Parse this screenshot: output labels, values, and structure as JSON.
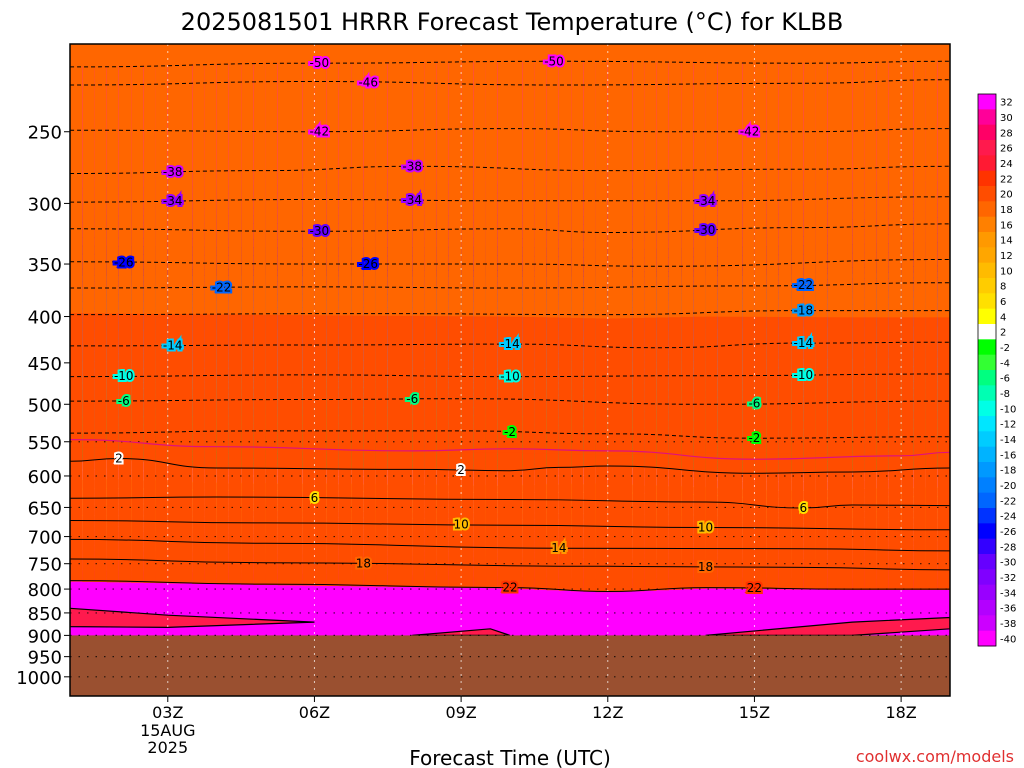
{
  "chart_data": {
    "type": "heatmap",
    "title": "2025081501 HRRR Forecast Temperature (°C) for KLBB",
    "xlabel": "Forecast Time (UTC)",
    "ylabel": "",
    "x_ticks": [
      {
        "hour": 3,
        "label": "03Z"
      },
      {
        "hour": 6,
        "label": "06Z"
      },
      {
        "hour": 9,
        "label": "09Z"
      },
      {
        "hour": 12,
        "label": "12Z"
      },
      {
        "hour": 15,
        "label": "15Z"
      },
      {
        "hour": 18,
        "label": "18Z"
      }
    ],
    "x_date_label": [
      "15AUG",
      "2025"
    ],
    "xlim": [
      1,
      19
    ],
    "y_scale": "log-pressure",
    "ylim": [
      1050,
      200
    ],
    "y_ticks": [
      250,
      300,
      350,
      400,
      450,
      500,
      550,
      600,
      650,
      700,
      750,
      800,
      850,
      900,
      950,
      1000
    ],
    "surface_pressure": 900,
    "ground_color": "#9a5030",
    "colorbar": {
      "levels": [
        32,
        30,
        28,
        26,
        24,
        22,
        20,
        18,
        16,
        14,
        12,
        10,
        8,
        6,
        4,
        2,
        -2,
        -4,
        -6,
        -8,
        -10,
        -12,
        -14,
        -16,
        -18,
        -20,
        -22,
        -24,
        -26,
        -28,
        -30,
        -32,
        -34,
        -36,
        -38,
        -40
      ],
      "colors": [
        "#ff00ff",
        "#ff0099",
        "#ff0066",
        "#ff1a4d",
        "#ff1a33",
        "#ff3300",
        "#ff4d00",
        "#ff6600",
        "#ff8000",
        "#ff9900",
        "#ffa600",
        "#ffbb00",
        "#ffcc00",
        "#ffe000",
        "#ffff00",
        "#ffffff",
        "#00ff00",
        "#33ff33",
        "#00ff80",
        "#00ffb3",
        "#00ffe6",
        "#00e6ff",
        "#00ccff",
        "#00b3ff",
        "#0099ff",
        "#0080ff",
        "#0066ff",
        "#0033ff",
        "#0000ff",
        "#3300ff",
        "#6600ff",
        "#8000ff",
        "#9900ff",
        "#b300ff",
        "#cc00ff",
        "#ff00ff"
      ]
    },
    "contours": [
      {
        "value": -50,
        "points": [
          [
            1,
            212
          ],
          [
            6,
            210
          ],
          [
            11,
            209
          ],
          [
            16,
            210
          ],
          [
            19,
            209
          ]
        ],
        "labels": [
          {
            "t": "-50",
            "x": 6.1
          },
          {
            "t": "-50",
            "x": 10.9
          }
        ]
      },
      {
        "value": -46,
        "points": [
          [
            1,
            222
          ],
          [
            6,
            220
          ],
          [
            11,
            222
          ],
          [
            16,
            221
          ],
          [
            19,
            219
          ]
        ],
        "labels": [
          {
            "t": "-46",
            "x": 7.1
          }
        ]
      },
      {
        "value": -42,
        "points": [
          [
            1,
            249
          ],
          [
            6,
            250
          ],
          [
            10,
            248
          ],
          [
            13,
            250
          ],
          [
            16,
            250
          ],
          [
            19,
            248
          ]
        ],
        "labels": [
          {
            "t": "-42",
            "x": 6.1
          },
          {
            "t": "-42",
            "x": 14.9
          }
        ]
      },
      {
        "value": -38,
        "points": [
          [
            1,
            278
          ],
          [
            5,
            276
          ],
          [
            8,
            273
          ],
          [
            12,
            276
          ],
          [
            16,
            275
          ],
          [
            19,
            273
          ]
        ],
        "labels": [
          {
            "t": "-38",
            "x": 3.1
          },
          {
            "t": "-38",
            "x": 8.0
          }
        ]
      },
      {
        "value": -34,
        "points": [
          [
            1,
            299
          ],
          [
            6,
            297
          ],
          [
            10,
            298
          ],
          [
            14,
            298
          ],
          [
            19,
            295
          ]
        ],
        "labels": [
          {
            "t": "-34",
            "x": 3.1
          },
          {
            "t": "-34",
            "x": 8.0
          },
          {
            "t": "-34",
            "x": 14.0
          }
        ]
      },
      {
        "value": -30,
        "points": [
          [
            1,
            320
          ],
          [
            6,
            322
          ],
          [
            10,
            320
          ],
          [
            12,
            323
          ],
          [
            16,
            319
          ],
          [
            19,
            316
          ]
        ],
        "labels": [
          {
            "t": "-30",
            "x": 6.1
          },
          {
            "t": "-30",
            "x": 14.0
          }
        ]
      },
      {
        "value": -26,
        "points": [
          [
            1,
            348
          ],
          [
            6,
            350
          ],
          [
            10,
            350
          ],
          [
            13,
            352
          ],
          [
            19,
            346
          ]
        ],
        "labels": [
          {
            "t": "-26",
            "x": 2.1
          },
          {
            "t": "-26",
            "x": 7.1
          }
        ]
      },
      {
        "value": -22,
        "points": [
          [
            1,
            372
          ],
          [
            6,
            371
          ],
          [
            10,
            372
          ],
          [
            15,
            370
          ],
          [
            19,
            367
          ]
        ],
        "labels": [
          {
            "t": "-22",
            "x": 4.1
          },
          {
            "t": "-22",
            "x": 16.0
          }
        ]
      },
      {
        "value": -18,
        "points": [
          [
            1,
            398
          ],
          [
            7,
            397
          ],
          [
            12,
            398
          ],
          [
            16,
            394
          ],
          [
            19,
            394
          ]
        ],
        "labels": [
          {
            "t": "-18",
            "x": 16.0
          }
        ]
      },
      {
        "value": -14,
        "points": [
          [
            1,
            431
          ],
          [
            6,
            430
          ],
          [
            10,
            429
          ],
          [
            13,
            433
          ],
          [
            16,
            428
          ],
          [
            19,
            427
          ]
        ],
        "labels": [
          {
            "t": "-14",
            "x": 3.1
          },
          {
            "t": "-14",
            "x": 10.0
          },
          {
            "t": "-14",
            "x": 16.0
          }
        ]
      },
      {
        "value": -10,
        "points": [
          [
            1,
            466
          ],
          [
            6,
            464
          ],
          [
            10,
            466
          ],
          [
            14,
            465
          ],
          [
            19,
            463
          ]
        ],
        "labels": [
          {
            "t": "-10",
            "x": 2.1
          },
          {
            "t": "-10",
            "x": 10.0
          },
          {
            "t": "-10",
            "x": 16.0
          }
        ]
      },
      {
        "value": -6,
        "points": [
          [
            1,
            496
          ],
          [
            6,
            494
          ],
          [
            9,
            493
          ],
          [
            14,
            500
          ],
          [
            19,
            496
          ]
        ],
        "labels": [
          {
            "t": "-6",
            "x": 2.1
          },
          {
            "t": "-6",
            "x": 8.0
          },
          {
            "t": "-6",
            "x": 15.0
          }
        ]
      },
      {
        "value": -2,
        "points": [
          [
            1,
            538
          ],
          [
            5,
            535
          ],
          [
            9,
            535
          ],
          [
            12,
            539
          ],
          [
            15,
            545
          ],
          [
            19,
            543
          ]
        ],
        "labels": [
          {
            "t": "-2",
            "x": 10.0
          },
          {
            "t": "-2",
            "x": 15.0
          }
        ]
      },
      {
        "value": 2,
        "points": [
          [
            1,
            578
          ],
          [
            2,
            574
          ],
          [
            4,
            588
          ],
          [
            8,
            590
          ],
          [
            10,
            592
          ],
          [
            11,
            587
          ],
          [
            12,
            585
          ],
          [
            15,
            596
          ],
          [
            17,
            594
          ],
          [
            19,
            588
          ]
        ],
        "labels": [
          {
            "t": "2",
            "x": 2.0
          },
          {
            "t": "2",
            "x": 9.0
          }
        ]
      },
      {
        "value": 6,
        "points": [
          [
            1,
            635
          ],
          [
            4,
            633
          ],
          [
            10,
            637
          ],
          [
            14,
            641
          ],
          [
            16,
            651
          ],
          [
            17,
            646
          ],
          [
            19,
            647
          ]
        ],
        "labels": [
          {
            "t": "6",
            "x": 6.0
          },
          {
            "t": "6",
            "x": 16.0
          }
        ]
      },
      {
        "value": 10,
        "points": [
          [
            1,
            672
          ],
          [
            5,
            676
          ],
          [
            10,
            680
          ],
          [
            14,
            684
          ],
          [
            19,
            688
          ]
        ],
        "labels": [
          {
            "t": "10",
            "x": 9.0
          },
          {
            "t": "10",
            "x": 14.0
          }
        ]
      },
      {
        "value": 14,
        "points": [
          [
            1,
            705
          ],
          [
            5,
            712
          ],
          [
            11,
            721
          ],
          [
            16,
            722
          ],
          [
            19,
            726
          ]
        ],
        "labels": [
          {
            "t": "14",
            "x": 11.0
          }
        ]
      },
      {
        "value": 18,
        "points": [
          [
            1,
            741
          ],
          [
            5,
            748
          ],
          [
            12,
            755
          ],
          [
            16,
            757
          ],
          [
            19,
            762
          ]
        ],
        "labels": [
          {
            "t": "18",
            "x": 7.0
          },
          {
            "t": "18",
            "x": 14.0
          }
        ]
      },
      {
        "value": 22,
        "points": [
          [
            1,
            783
          ],
          [
            5,
            790
          ],
          [
            10,
            797
          ],
          [
            12,
            805
          ],
          [
            14,
            797
          ],
          [
            17,
            800
          ],
          [
            19,
            800
          ]
        ],
        "labels": [
          {
            "t": "22",
            "x": 10.0
          },
          {
            "t": "22",
            "x": 15.0
          }
        ]
      }
    ],
    "lobes": [
      {
        "value": 26,
        "points": [
          [
            1,
            840
          ],
          [
            3,
            855
          ],
          [
            6,
            870
          ],
          [
            3,
            882
          ],
          [
            1,
            880
          ]
        ]
      },
      {
        "value": 26,
        "points": [
          [
            8,
            900
          ],
          [
            9.6,
            885
          ],
          [
            10,
            900
          ]
        ]
      },
      {
        "value": 26,
        "points": [
          [
            14,
            900
          ],
          [
            17,
            870
          ],
          [
            19,
            860
          ],
          [
            19,
            885
          ],
          [
            17,
            900
          ]
        ]
      }
    ],
    "zero_line": {
      "value": 0,
      "points": [
        [
          1,
          547
        ],
        [
          4,
          557
        ],
        [
          8,
          563
        ],
        [
          10,
          560
        ],
        [
          12,
          563
        ],
        [
          15,
          575
        ],
        [
          18,
          570
        ],
        [
          19,
          565
        ]
      ]
    },
    "dotted_levels": [
      550,
      600,
      650,
      700,
      750,
      800,
      850,
      900,
      950,
      1000
    ]
  },
  "footer": {
    "credit": "coolwx.com/models"
  },
  "colors": {
    "credit": "#e03030",
    "contour": "#000000",
    "zero_line": "#e0107c"
  }
}
